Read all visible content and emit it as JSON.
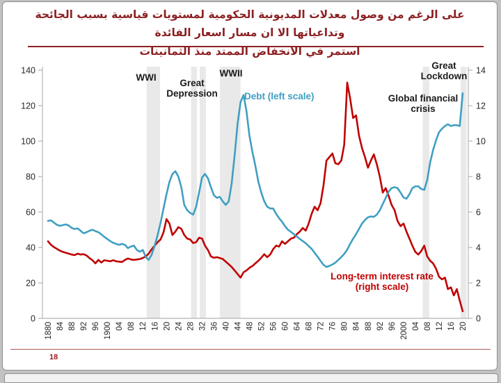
{
  "slide": {
    "title_line1": "على الرغم من وصول معدلات المديونية الحكومية لمستويات قياسية بسبب الجائحة وتداعياتها الا ان مسار اسعار الفائدة",
    "title_line2": "استمر في الانخفاض الممتد منذ الثمانينات",
    "title_color": "#8c2022",
    "page_number": "18"
  },
  "chart_data": {
    "type": "line",
    "x_start_year": 1880,
    "x_end_year": 2020,
    "x_tick_step": 4,
    "x_tick_labels": [
      "1880",
      "84",
      "88",
      "92",
      "96",
      "1900",
      "04",
      "08",
      "12",
      "16",
      "20",
      "24",
      "28",
      "32",
      "36",
      "40",
      "44",
      "48",
      "52",
      "56",
      "60",
      "64",
      "68",
      "72",
      "76",
      "80",
      "84",
      "88",
      "92",
      "96",
      "2000",
      "04",
      "08",
      "12",
      "16",
      "20"
    ],
    "left_axis": {
      "min": 0,
      "max": 140,
      "ticks": [
        0,
        20,
        40,
        60,
        80,
        100,
        120,
        140
      ]
    },
    "right_axis": {
      "min": 0,
      "max": 14,
      "ticks": [
        0,
        2,
        4,
        6,
        8,
        10,
        12,
        14
      ]
    },
    "colors": {
      "debt": "#3f9fc2",
      "rate": "#c00000",
      "band": "#e9e9e9",
      "axis": "#b3b3b3",
      "text": "#262626"
    },
    "series": [
      {
        "name": "Debt (left scale)",
        "axis": "left",
        "color": "#3f9fc2",
        "start_year": 1880,
        "values": [
          55,
          55.3,
          54,
          52.8,
          52.2,
          52.6,
          53,
          52.4,
          51,
          50.4,
          50.8,
          49.4,
          48,
          48.6,
          49.4,
          50,
          49.2,
          48.6,
          47.4,
          46,
          44.8,
          43.6,
          42.6,
          42,
          41.5,
          42,
          41.4,
          39.6,
          40.6,
          41,
          38.6,
          37.6,
          38.6,
          34.6,
          33,
          36,
          41,
          47,
          54,
          62,
          70,
          77,
          81.5,
          83,
          80,
          74,
          64,
          61,
          59.5,
          58.5,
          63,
          71,
          79.5,
          81.5,
          79,
          74,
          69.5,
          68,
          68.5,
          66,
          64,
          66,
          76,
          92,
          110,
          122,
          126,
          117,
          103,
          94,
          86,
          77,
          71,
          66,
          63,
          62,
          62,
          59,
          56.5,
          54.5,
          52,
          50,
          48.8,
          47.5,
          46.2,
          44.8,
          43.6,
          42.4,
          40.8,
          39.2,
          37,
          34.8,
          32.4,
          30.2,
          29,
          29.6,
          30.4,
          31.4,
          33,
          34.6,
          36.4,
          38.8,
          42,
          45,
          47.5,
          50.5,
          53.5,
          55.5,
          57,
          57.5,
          57.3,
          58.5,
          61,
          64.5,
          68,
          71.5,
          73.5,
          74,
          73.5,
          71,
          68.2,
          67.5,
          70,
          73.5,
          74.5,
          74.5,
          73,
          72.5,
          78,
          88,
          95,
          100.5,
          105,
          107,
          108.5,
          109.5,
          108.5,
          109,
          109,
          108.5,
          127
        ]
      },
      {
        "name": "Long-term interest rate (right scale)",
        "axis": "right",
        "color": "#c00000",
        "start_year": 1880,
        "values": [
          4.35,
          4.15,
          4.02,
          3.92,
          3.82,
          3.75,
          3.7,
          3.65,
          3.6,
          3.57,
          3.65,
          3.6,
          3.62,
          3.55,
          3.4,
          3.28,
          3.1,
          3.3,
          3.15,
          3.28,
          3.25,
          3.22,
          3.28,
          3.22,
          3.2,
          3.18,
          3.3,
          3.38,
          3.32,
          3.3,
          3.32,
          3.35,
          3.4,
          3.5,
          3.65,
          3.9,
          4.1,
          4.3,
          4.45,
          4.85,
          5.6,
          5.35,
          4.7,
          4.9,
          5.15,
          5.05,
          4.7,
          4.5,
          4.45,
          4.25,
          4.3,
          4.55,
          4.5,
          4.1,
          3.85,
          3.5,
          3.42,
          3.45,
          3.4,
          3.35,
          3.2,
          3.05,
          2.9,
          2.7,
          2.5,
          2.3,
          2.6,
          2.7,
          2.85,
          2.95,
          3.1,
          3.25,
          3.42,
          3.62,
          3.45,
          3.6,
          3.9,
          4.1,
          4.05,
          4.35,
          4.2,
          4.35,
          4.5,
          4.55,
          4.75,
          4.9,
          5.1,
          4.95,
          5.35,
          5.9,
          6.3,
          6.1,
          6.5,
          7.5,
          8.9,
          9.1,
          9.3,
          8.75,
          8.7,
          8.9,
          9.8,
          13.3,
          12.4,
          11.3,
          11.45,
          10.3,
          9.6,
          9.1,
          8.5,
          8.9,
          9.25,
          8.7,
          8,
          7.1,
          7.35,
          6.9,
          6.4,
          6.1,
          5.5,
          5.2,
          5.35,
          4.9,
          4.5,
          4.1,
          3.75,
          3.6,
          3.8,
          4.1,
          3.5,
          3.25,
          3.1,
          2.8,
          2.35,
          2.2,
          2.3,
          1.65,
          1.75,
          1.3,
          1.65,
          1,
          0.4
        ]
      }
    ],
    "shaded_periods": [
      {
        "label": "WWI",
        "from": 1913.3,
        "to": 1917.8
      },
      {
        "label": "Great Depression",
        "from": 1928.3,
        "to": 1930.3
      },
      {
        "label": "Great Depression",
        "from": 1931.2,
        "to": 1933.3
      },
      {
        "label": "WWII",
        "from": 1938,
        "to": 1945
      },
      {
        "label": "Global financial crisis",
        "from": 2006.5,
        "to": 2008.7
      },
      {
        "label": "Great Lockdown",
        "from": 2019.3,
        "to": 2021.3
      }
    ],
    "annotations": {
      "wwi": "WWI",
      "great_depression": "Great Depression",
      "wwii": "WWII",
      "debt_label": "Debt (left scale)",
      "global_financial_crisis": "Global financial crisis",
      "great_lockdown": "Great Lockdown",
      "interest_label": "Long-term interest rate (right scale)"
    }
  }
}
